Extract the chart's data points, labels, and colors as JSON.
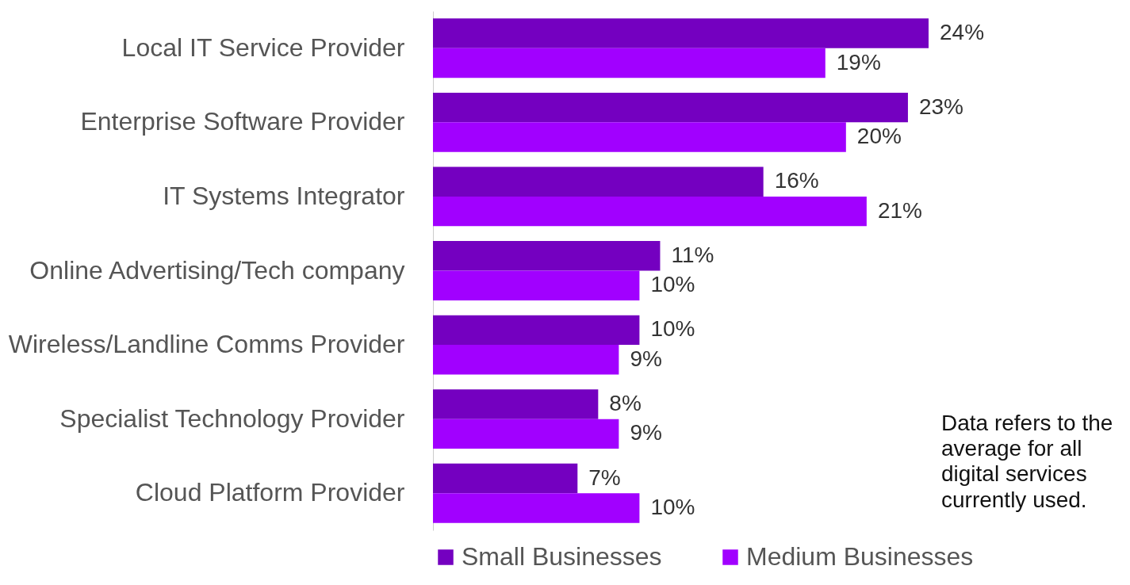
{
  "chart_data": {
    "type": "bar",
    "orientation": "horizontal",
    "categories": [
      "Local IT Service Provider",
      "Enterprise Software Provider",
      "IT Systems Integrator",
      "Online Advertising/Tech company",
      "Wireless/Landline Comms Provider",
      "Specialist Technology Provider",
      "Cloud Platform Provider"
    ],
    "series": [
      {
        "name": "Small Businesses",
        "color": "#7400c0",
        "values": [
          24,
          23,
          16,
          11,
          10,
          8,
          7
        ],
        "value_labels": [
          "24%",
          "23%",
          "16%",
          "11%",
          "10%",
          "8%",
          "7%"
        ]
      },
      {
        "name": "Medium Businesses",
        "color": "#a100ff",
        "values": [
          19,
          20,
          21,
          10,
          9,
          9,
          10
        ],
        "value_labels": [
          "19%",
          "20%",
          "21%",
          "10%",
          "9%",
          "9%",
          "10%"
        ]
      }
    ],
    "legend": "bottom",
    "annotations": [
      "Data refers to the average for all digital services currently used."
    ]
  }
}
